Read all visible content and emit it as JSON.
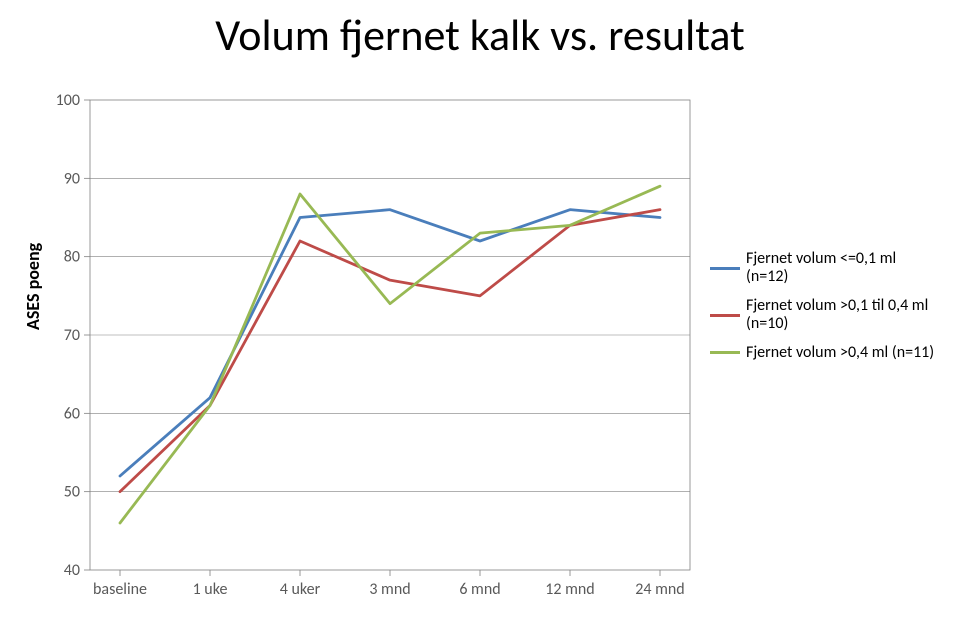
{
  "title": "Volum fjernet kalk vs. resultat",
  "ylabel": "ASES poeng",
  "chart": {
    "type": "line",
    "background_color": "#ffffff",
    "border_color": "#808080",
    "grid_color": "#808080",
    "grid_on": true,
    "ylim": [
      40,
      100
    ],
    "ytick_step": 10,
    "yticks": [
      40,
      50,
      60,
      70,
      80,
      90,
      100
    ],
    "categories": [
      "baseline",
      "1 uke",
      "4 uker",
      "3 mnd",
      "6 mnd",
      "12 mnd",
      "24 mnd"
    ],
    "line_width": 2.8,
    "series": [
      {
        "name": "Fjernet volum <=0,1 ml (n=12)",
        "color": "#4a7ebb",
        "values": [
          52,
          62,
          85,
          86,
          82,
          86,
          85
        ]
      },
      {
        "name": "Fjernet volum >0,1 til 0,4 ml (n=10)",
        "color": "#be4b48",
        "values": [
          50,
          61,
          82,
          77,
          75,
          84,
          86
        ]
      },
      {
        "name": "Fjernet volum >0,4 ml (n=11)",
        "color": "#98b954",
        "values": [
          46,
          61,
          88,
          74,
          83,
          84,
          89
        ]
      }
    ],
    "legend_position": "right",
    "tick_font_size": 16,
    "title_font_size": 44,
    "ylabel_font_size": 18
  }
}
